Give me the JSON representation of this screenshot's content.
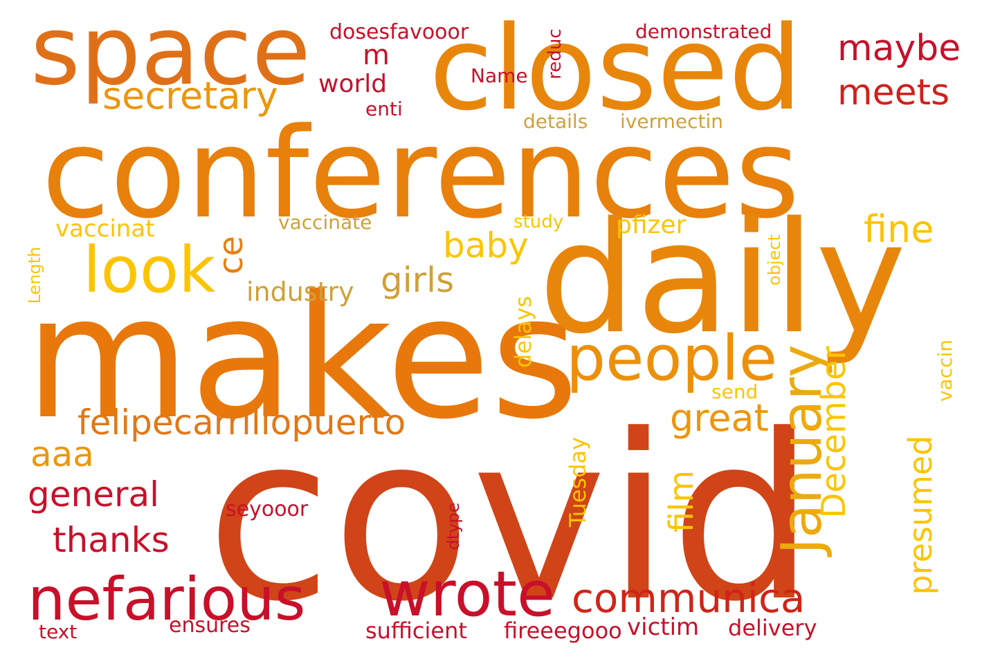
{
  "words": [
    {
      "key": "covid",
      "text": "covid",
      "color": "#d04418",
      "orient": "h"
    },
    {
      "key": "makes",
      "text": "makes",
      "color": "#e8780c",
      "orient": "h"
    },
    {
      "key": "conferences",
      "text": "conferences",
      "color": "#e8800c",
      "orient": "h"
    },
    {
      "key": "daily",
      "text": "daily",
      "color": "#e8860c",
      "orient": "h"
    },
    {
      "key": "closed",
      "text": "closed",
      "color": "#e8860c",
      "orient": "h"
    },
    {
      "key": "space",
      "text": "space",
      "color": "#e07018",
      "orient": "h"
    },
    {
      "key": "look",
      "text": "look",
      "color": "#fcc400",
      "orient": "h"
    },
    {
      "key": "people",
      "text": "people",
      "color": "#ec900c",
      "orient": "h"
    },
    {
      "key": "wrote",
      "text": "wrote",
      "color": "#c8102a",
      "orient": "h"
    },
    {
      "key": "nefarious",
      "text": "nefarious",
      "color": "#c8102a",
      "orient": "h"
    },
    {
      "key": "communica",
      "text": "communica",
      "color": "#d02418",
      "orient": "h"
    },
    {
      "key": "January",
      "text": "January",
      "color": "#ecaa10",
      "orient": "v"
    },
    {
      "key": "felipecarrillopuerto",
      "text": "felipecarrillopuerto",
      "color": "#e07818",
      "orient": "h"
    },
    {
      "key": "secretary",
      "text": "secretary",
      "color": "#ec960c",
      "orient": "h"
    },
    {
      "key": "maybe",
      "text": "maybe",
      "color": "#c8102a",
      "orient": "h"
    },
    {
      "key": "meets",
      "text": "meets",
      "color": "#d0201c",
      "orient": "h"
    },
    {
      "key": "fine",
      "text": "fine",
      "color": "#fcc400",
      "orient": "h"
    },
    {
      "key": "great",
      "text": "great",
      "color": "#ec960c",
      "orient": "h"
    },
    {
      "key": "girls",
      "text": "girls",
      "color": "#d0a038",
      "orient": "h"
    },
    {
      "key": "baby",
      "text": "baby",
      "color": "#fcc400",
      "orient": "h"
    },
    {
      "key": "December",
      "text": "December",
      "color": "#fcc400",
      "orient": "v"
    },
    {
      "key": "presumed",
      "text": "presumed",
      "color": "#fcc400",
      "orient": "v"
    },
    {
      "key": "film",
      "text": "film",
      "color": "#fcc400",
      "orient": "v"
    },
    {
      "key": "general",
      "text": "general",
      "color": "#c8102a",
      "orient": "h"
    },
    {
      "key": "thanks",
      "text": "thanks",
      "color": "#c8102a",
      "orient": "h"
    },
    {
      "key": "aaa",
      "text": "aaa",
      "color": "#ec960c",
      "orient": "h"
    },
    {
      "key": "industry",
      "text": "industry",
      "color": "#d0a038",
      "orient": "h"
    },
    {
      "key": "vaccinat",
      "text": "vaccinat",
      "color": "#fcc400",
      "orient": "h"
    },
    {
      "key": "ce",
      "text": "ce",
      "color": "#e8800c",
      "orient": "v"
    },
    {
      "key": "m",
      "text": "m",
      "color": "#c8102a",
      "orient": "h"
    },
    {
      "key": "world",
      "text": "world",
      "color": "#c8102a",
      "orient": "h"
    },
    {
      "key": "pfizer",
      "text": "pfizer",
      "color": "#fcc400",
      "orient": "h"
    },
    {
      "key": "Tuesday",
      "text": "Tuesday",
      "color": "#fcc400",
      "orient": "v"
    },
    {
      "key": "delays",
      "text": "delays",
      "color": "#fcc400",
      "orient": "v"
    },
    {
      "key": "victim",
      "text": "victim",
      "color": "#c8102a",
      "orient": "h"
    },
    {
      "key": "delivery",
      "text": "delivery",
      "color": "#c8102a",
      "orient": "h"
    },
    {
      "key": "sufficient",
      "text": "sufficient",
      "color": "#c8102a",
      "orient": "h"
    },
    {
      "key": "fireeegooo",
      "text": "fireeegooo",
      "color": "#c8102a",
      "orient": "h"
    },
    {
      "key": "ensures",
      "text": "ensures",
      "color": "#c8102a",
      "orient": "h"
    },
    {
      "key": "seyooor",
      "text": "seyooor",
      "color": "#c8102a",
      "orient": "h"
    },
    {
      "key": "vaccinate",
      "text": "vaccinate",
      "color": "#d0a038",
      "orient": "h"
    },
    {
      "key": "study",
      "text": "study",
      "color": "#fcc400",
      "orient": "h"
    },
    {
      "key": "demonstrated",
      "text": "demonstrated",
      "color": "#c8102a",
      "orient": "h"
    },
    {
      "key": "dosesfavooor",
      "text": "dosesfavooor",
      "color": "#c8102a",
      "orient": "h"
    },
    {
      "key": "Name",
      "text": "Name",
      "color": "#c8102a",
      "orient": "h"
    },
    {
      "key": "enti",
      "text": "enti",
      "color": "#c8102a",
      "orient": "h"
    },
    {
      "key": "reduc",
      "text": "reduc",
      "color": "#c8102a",
      "orient": "v"
    },
    {
      "key": "details",
      "text": "details",
      "color": "#d0a038",
      "orient": "h"
    },
    {
      "key": "ivermectin",
      "text": "ivermectin",
      "color": "#d0a038",
      "orient": "h"
    },
    {
      "key": "object",
      "text": "object",
      "color": "#fcc400",
      "orient": "v"
    },
    {
      "key": "Length",
      "text": "Length",
      "color": "#fcc400",
      "orient": "v"
    },
    {
      "key": "send",
      "text": "send",
      "color": "#fcc400",
      "orient": "h"
    },
    {
      "key": "vaccin",
      "text": "vaccin",
      "color": "#fcc400",
      "orient": "v"
    },
    {
      "key": "dtype",
      "text": "dtype",
      "color": "#c8102a",
      "orient": "v"
    },
    {
      "key": "text",
      "text": "text",
      "color": "#c8102a",
      "orient": "h"
    }
  ]
}
